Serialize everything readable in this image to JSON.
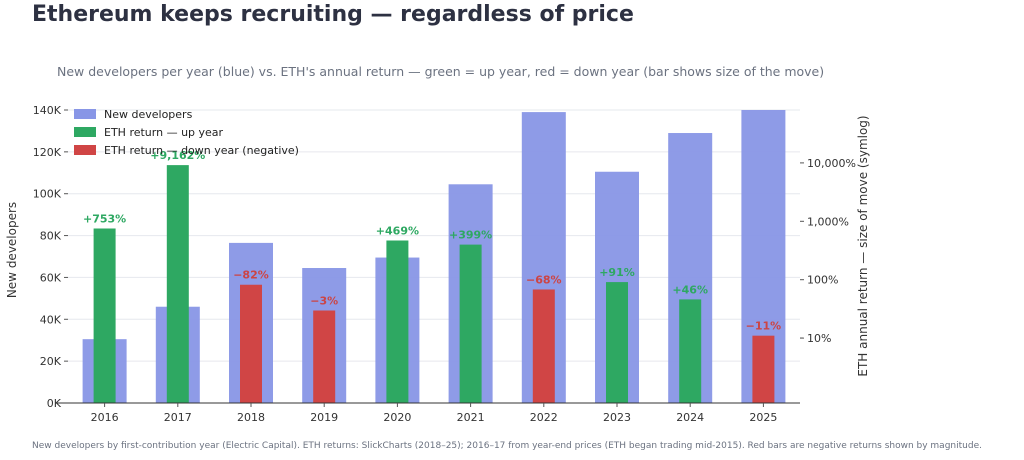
{
  "title": "Ethereum keeps recruiting — regardless of price",
  "subtitle": "New developers per year (blue) vs. ETH's annual return — green = up year, red = down year (bar shows size of the move)",
  "footnote": "New developers by first-contribution year (Electric Capital). ETH returns: SlickCharts (2018–25); 2016–17 from year-end prices (ETH began trading mid-2015). Red bars are negative returns shown by magnitude.",
  "colors": {
    "developers": "#8896e6",
    "up": "#2ea862",
    "down": "#d04545",
    "up_label": "#2ea862",
    "down_label": "#cc4444"
  },
  "chart_data": {
    "type": "bar",
    "categories": [
      "2016",
      "2017",
      "2018",
      "2019",
      "2020",
      "2021",
      "2022",
      "2023",
      "2024",
      "2025"
    ],
    "series": [
      {
        "name": "New developers",
        "axis": "left",
        "values": [
          30500,
          46000,
          76500,
          64500,
          69500,
          104500,
          139000,
          110500,
          129000,
          140000
        ]
      },
      {
        "name": "ETH annual return",
        "axis": "right",
        "values": [
          753,
          9162,
          -82,
          -3,
          469,
          399,
          -68,
          91,
          46,
          -11
        ],
        "labels": [
          "+753%",
          "+9,162%",
          "−82%",
          "−3%",
          "+469%",
          "+399%",
          "−68%",
          "+91%",
          "+46%",
          "−11%"
        ]
      }
    ],
    "ylabel": "New developers",
    "ylim": [
      0,
      140000
    ],
    "yticks": [
      "0K",
      "20K",
      "40K",
      "60K",
      "80K",
      "100K",
      "120K",
      "140K"
    ],
    "y2label": "ETH annual return — size of move (symlog)",
    "y2scale": "symlog",
    "y2ticks": [
      "10%",
      "100%",
      "1,000%",
      "10,000%"
    ],
    "grid": true,
    "legend": {
      "placement": "top-left",
      "entries": [
        "New developers",
        "ETH return — up year",
        "ETH return — down year (negative)"
      ]
    }
  }
}
